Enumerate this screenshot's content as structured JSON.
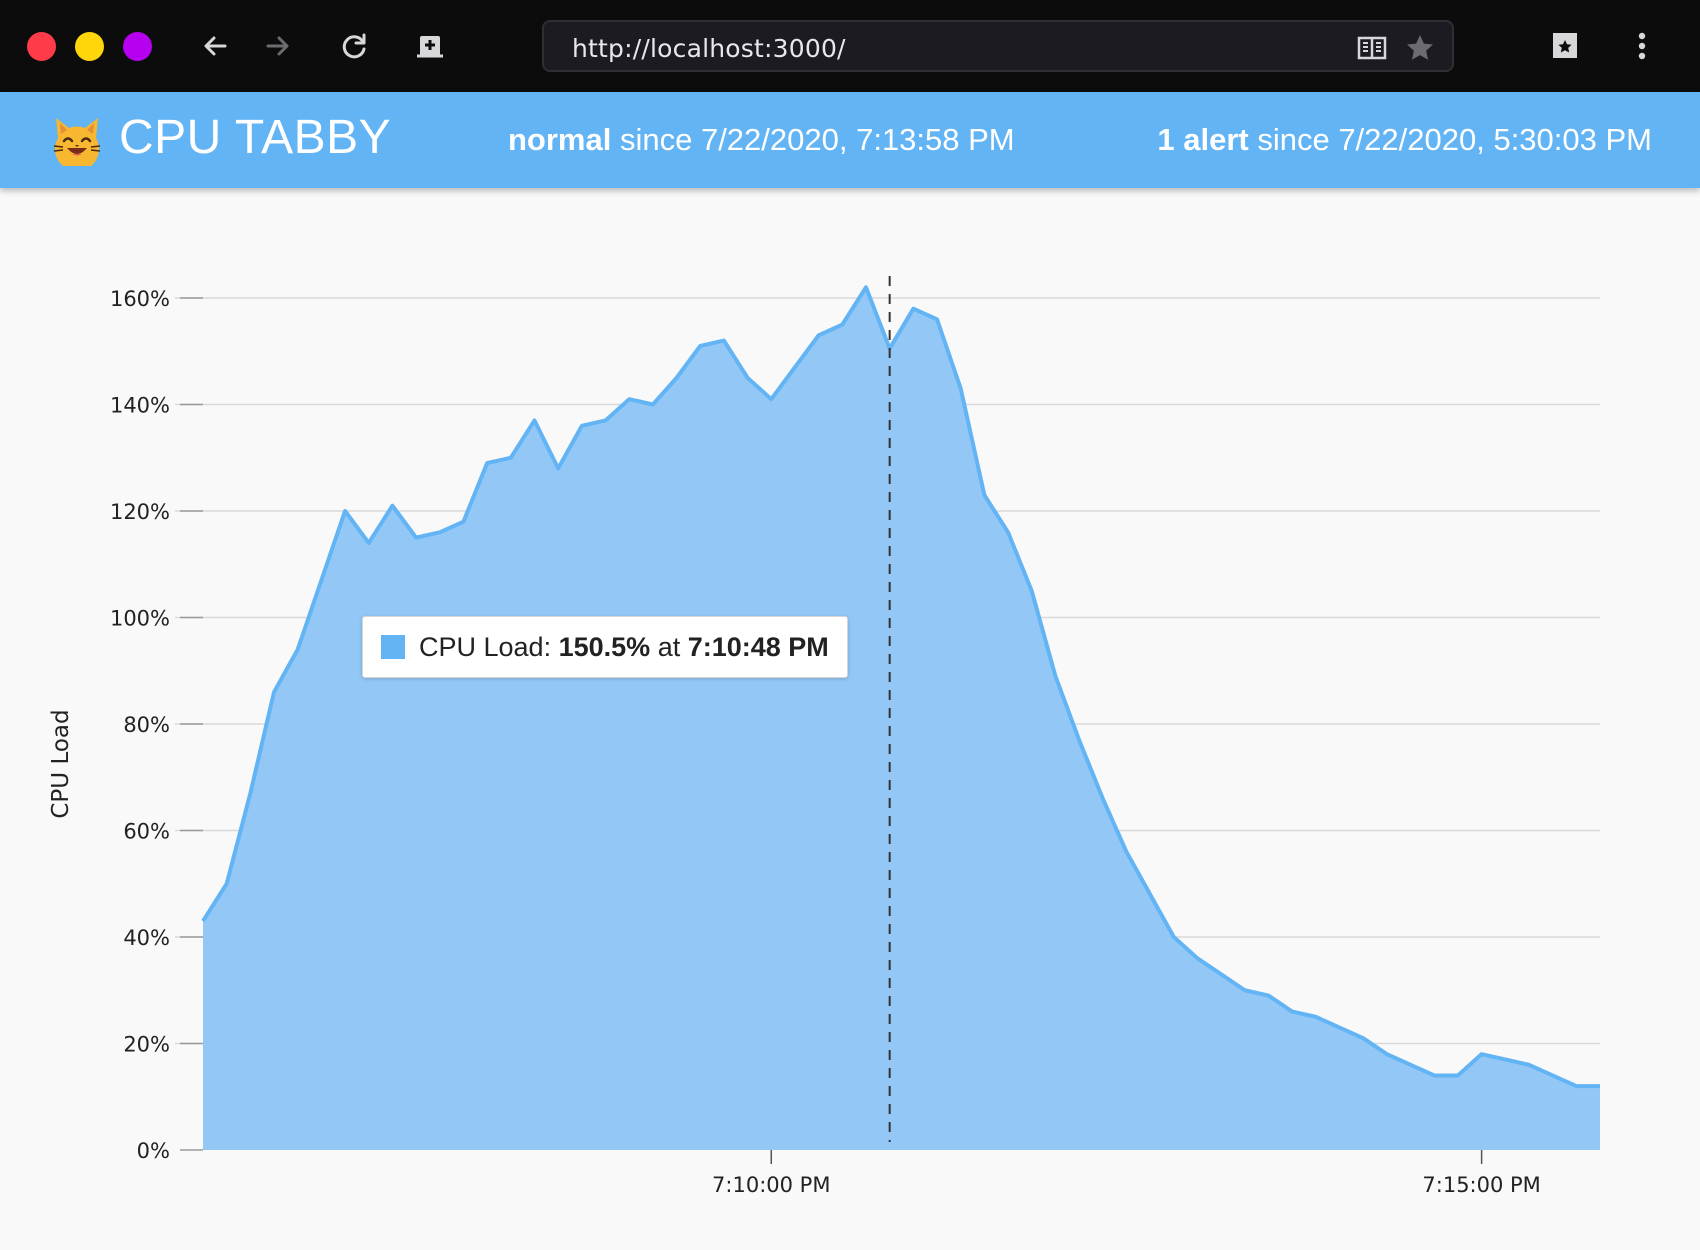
{
  "browser": {
    "url": "http://localhost:3000/",
    "icons": [
      "close-dot",
      "minimize-dot",
      "maximize-dot",
      "back-arrow-icon",
      "forward-arrow-icon",
      "reload-icon",
      "add-tab-icon",
      "reader-view-icon",
      "bookmark-star-icon",
      "bookmarks-library-icon",
      "menu-kebab-icon"
    ]
  },
  "app": {
    "logo_icon": "cat-face-emoji",
    "title": "CPU TABBY",
    "status_state": "normal",
    "status_since": " since 7/22/2020, 7:13:58 PM",
    "alerts_count": "1 alert",
    "alerts_since": " since 7/22/2020, 5:30:03 PM"
  },
  "tooltip": {
    "label": "CPU Load:",
    "value": "150.5%",
    "at": "at",
    "time": "7:10:48 PM"
  },
  "colors": {
    "accent": "#63b4f4",
    "area_fill": "#93c8f6",
    "header_bg": "#63b4f4",
    "chrome_bg": "#0c0c0d"
  },
  "chart_data": {
    "type": "area",
    "ylabel": "CPU Load",
    "xlabel": "",
    "ylim": [
      0,
      1.6
    ],
    "y_ticks": [
      0,
      0.2,
      0.4,
      0.6,
      0.8,
      1.0,
      1.2,
      1.4,
      1.6
    ],
    "y_tick_labels": [
      "0%",
      "20%",
      "40%",
      "60%",
      "80%",
      "100%",
      "120%",
      "140%",
      "160%"
    ],
    "x_start": "7:06:00 PM",
    "x_step_seconds": 10,
    "x_tick_labels": [
      {
        "label": "7:10:00 PM",
        "index": 24
      },
      {
        "label": "7:15:00 PM",
        "index": 54
      }
    ],
    "hover_index": 29,
    "grid": true,
    "series": [
      {
        "values": [
          0.43,
          0.5,
          0.67,
          0.86,
          0.94,
          1.07,
          1.2,
          1.14,
          1.21,
          1.15,
          1.16,
          1.18,
          1.29,
          1.3,
          1.37,
          1.28,
          1.36,
          1.37,
          1.41,
          1.4,
          1.45,
          1.51,
          1.52,
          1.45,
          1.41,
          1.47,
          1.53,
          1.55,
          1.62,
          1.505,
          1.58,
          1.56,
          1.43,
          1.23,
          1.16,
          1.05,
          0.89,
          0.77,
          0.66,
          0.56,
          0.48,
          0.4,
          0.36,
          0.33,
          0.3,
          0.29,
          0.26,
          0.25,
          0.23,
          0.21,
          0.18,
          0.16,
          0.14,
          0.14,
          0.18,
          0.17,
          0.16,
          0.14,
          0.12,
          0.12
        ]
      }
    ]
  }
}
